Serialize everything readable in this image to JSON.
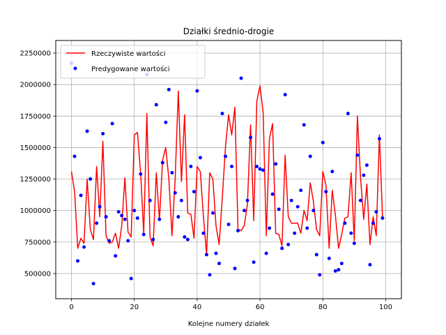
{
  "chart_data": {
    "type": "line",
    "title": "Działki średnio-drogie",
    "xlabel": "Kolejne numery działek",
    "ylabel": "",
    "xlim": [
      -5,
      105
    ],
    "ylim": [
      300000,
      2350000
    ],
    "xticks": [
      0,
      20,
      40,
      60,
      80,
      100
    ],
    "yticks": [
      500000,
      750000,
      1000000,
      1250000,
      1500000,
      1750000,
      2000000,
      2250000
    ],
    "xtick_labels": [
      "0",
      "20",
      "40",
      "60",
      "80",
      "100"
    ],
    "ytick_labels": [
      "500000",
      "750000",
      "1000000",
      "1250000",
      "1500000",
      "1750000",
      "2000000",
      "2250000"
    ],
    "grid": true,
    "legend_position": "top-left",
    "series": [
      {
        "name": "Rzeczywiste wartości",
        "kind": "line",
        "color": "#ff0000",
        "x": [
          0,
          1,
          2,
          3,
          4,
          5,
          6,
          7,
          8,
          9,
          10,
          11,
          12,
          13,
          14,
          15,
          16,
          17,
          18,
          19,
          20,
          21,
          22,
          23,
          24,
          25,
          26,
          27,
          28,
          29,
          30,
          31,
          32,
          33,
          34,
          35,
          36,
          37,
          38,
          39,
          40,
          41,
          42,
          43,
          44,
          45,
          46,
          47,
          48,
          49,
          50,
          51,
          52,
          53,
          54,
          55,
          56,
          57,
          58,
          59,
          60,
          61,
          62,
          63,
          64,
          65,
          66,
          67,
          68,
          69,
          70,
          71,
          72,
          73,
          74,
          75,
          76,
          77,
          78,
          79,
          80,
          81,
          82,
          83,
          84,
          85,
          86,
          87,
          88,
          89,
          90,
          91,
          92,
          93,
          94,
          95,
          96,
          97,
          98,
          99
        ],
        "values": [
          1310000,
          1150000,
          700000,
          780000,
          740000,
          1250000,
          850000,
          770000,
          1350000,
          950000,
          1550000,
          800000,
          740000,
          750000,
          820000,
          700000,
          880000,
          1260000,
          830000,
          790000,
          1600000,
          1620000,
          1300000,
          820000,
          1770000,
          790000,
          720000,
          1300000,
          920000,
          1400000,
          1500000,
          1250000,
          800000,
          1250000,
          1950000,
          1230000,
          1760000,
          980000,
          970000,
          780000,
          1350000,
          1310000,
          950000,
          650000,
          1300000,
          1250000,
          880000,
          730000,
          1100000,
          1500000,
          1760000,
          1600000,
          1820000,
          850000,
          840000,
          880000,
          1050000,
          1680000,
          920000,
          1870000,
          1990000,
          1780000,
          800000,
          1570000,
          1690000,
          820000,
          810000,
          720000,
          1440000,
          950000,
          900000,
          900000,
          900000,
          820000,
          1000000,
          920000,
          1220000,
          1070000,
          850000,
          800000,
          1310000,
          1200000,
          700000,
          1160000,
          960000,
          700000,
          810000,
          940000,
          950000,
          1300000,
          760000,
          1750000,
          1260000,
          930000,
          1210000,
          730000,
          950000,
          800000,
          1600000,
          940000
        ]
      },
      {
        "name": "Predygowane wartości",
        "kind": "scatter",
        "color": "#0000ff",
        "x": [
          0,
          1,
          2,
          3,
          4,
          5,
          6,
          7,
          8,
          9,
          10,
          11,
          12,
          13,
          14,
          15,
          16,
          17,
          18,
          19,
          20,
          21,
          22,
          23,
          24,
          25,
          26,
          27,
          28,
          29,
          30,
          31,
          32,
          33,
          34,
          35,
          36,
          37,
          38,
          39,
          40,
          41,
          42,
          43,
          44,
          45,
          46,
          47,
          48,
          49,
          50,
          51,
          52,
          53,
          54,
          55,
          56,
          57,
          58,
          59,
          60,
          61,
          62,
          63,
          64,
          65,
          66,
          67,
          68,
          69,
          70,
          71,
          72,
          73,
          74,
          75,
          76,
          77,
          78,
          79,
          80,
          81,
          82,
          83,
          84,
          85,
          86,
          87,
          88,
          89,
          90,
          91,
          92,
          93,
          94,
          95,
          96,
          97,
          98,
          99
        ],
        "values": [
          2170000,
          1430000,
          600000,
          1120000,
          710000,
          1630000,
          1250000,
          420000,
          900000,
          1030000,
          1610000,
          950000,
          760000,
          1690000,
          640000,
          990000,
          960000,
          930000,
          760000,
          460000,
          1000000,
          940000,
          1290000,
          810000,
          2080000,
          1080000,
          770000,
          1840000,
          930000,
          1380000,
          1700000,
          1960000,
          1300000,
          1140000,
          950000,
          1080000,
          790000,
          770000,
          1350000,
          1150000,
          1950000,
          1420000,
          820000,
          650000,
          490000,
          980000,
          660000,
          580000,
          1770000,
          1430000,
          890000,
          1350000,
          540000,
          840000,
          2050000,
          1000000,
          1080000,
          1580000,
          590000,
          1350000,
          1330000,
          1320000,
          660000,
          860000,
          1130000,
          1370000,
          1010000,
          700000,
          1920000,
          730000,
          1080000,
          820000,
          1030000,
          1160000,
          1680000,
          860000,
          1430000,
          1000000,
          650000,
          490000,
          1540000,
          1150000,
          620000,
          1310000,
          520000,
          530000,
          580000,
          900000,
          1770000,
          820000,
          740000,
          1440000,
          1080000,
          1280000,
          1360000,
          570000,
          900000,
          990000,
          1570000,
          940000
        ]
      }
    ]
  }
}
